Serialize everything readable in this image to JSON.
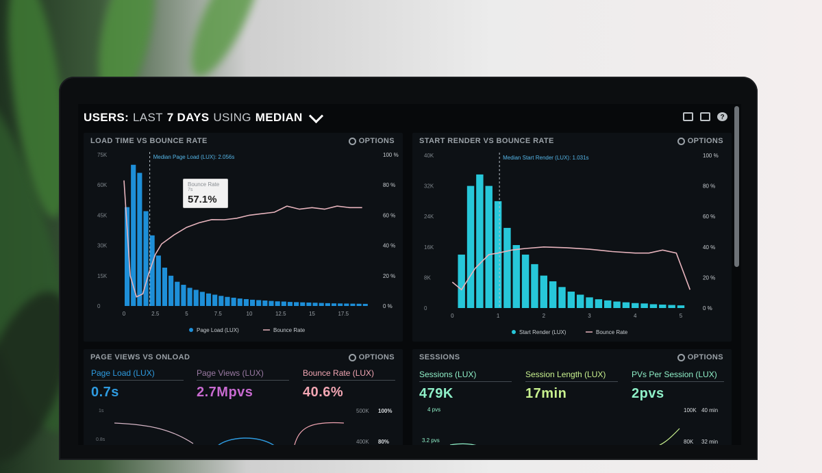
{
  "header": {
    "prefix": "USERS:",
    "middle1": "LAST",
    "days": "7 DAYS",
    "middle2": "USING",
    "stat": "MEDIAN",
    "icons": [
      "monitor-icon",
      "image-icon",
      "help-icon"
    ],
    "help_glyph": "?"
  },
  "options_label": "OPTIONS",
  "panel1": {
    "title": "LOAD TIME VS BOUNCE RATE",
    "median_label": "Median Page Load (LUX): 2.056s",
    "tooltip": {
      "title": "Bounce Rate",
      "sub": "7s",
      "value": "57.1%"
    },
    "left_ticks": [
      "75K",
      "60K",
      "45K",
      "30K",
      "15K",
      "0"
    ],
    "right_ticks": [
      "100 %",
      "80 %",
      "60 %",
      "40 %",
      "20 %",
      "0 %"
    ],
    "x_ticks": [
      "0",
      "2.5",
      "5",
      "7.5",
      "10",
      "12.5",
      "15",
      "17.5"
    ],
    "legend": {
      "bars": "Page Load (LUX)",
      "line": "Bounce Rate"
    }
  },
  "panel2": {
    "title": "START RENDER VS BOUNCE RATE",
    "median_label": "Median Start Render (LUX): 1.031s",
    "left_ticks": [
      "40K",
      "32K",
      "24K",
      "16K",
      "8K",
      "0"
    ],
    "right_ticks": [
      "100 %",
      "80 %",
      "60 %",
      "40 %",
      "20 %",
      "0 %"
    ],
    "x_ticks": [
      "0",
      "1",
      "2",
      "3",
      "4",
      "5"
    ],
    "legend": {
      "bars": "Start Render (LUX)",
      "line": "Bounce Rate"
    }
  },
  "panel3": {
    "title": "PAGE VIEWS VS ONLOAD",
    "metrics": [
      {
        "label": "Page Load (LUX)",
        "value": "0.7s",
        "color": "#2e9be0"
      },
      {
        "label": "Page Views (LUX)",
        "value": "2.7Mpvs",
        "color": "#c86ad0"
      },
      {
        "label": "Bounce Rate (LUX)",
        "value": "40.6%",
        "color": "#f2a6b3"
      }
    ],
    "axis_left": [
      "1s",
      "0.8s"
    ],
    "axis_right1": [
      "500K",
      "400K"
    ],
    "axis_right2": [
      "100%",
      "80%"
    ]
  },
  "panel4": {
    "title": "SESSIONS",
    "metrics": [
      {
        "label": "Sessions (LUX)",
        "value": "479K",
        "color": "#8ff0c8"
      },
      {
        "label": "Session Length (LUX)",
        "value": "17min",
        "color": "#c9f28f"
      },
      {
        "label": "PVs Per Session (LUX)",
        "value": "2pvs",
        "color": "#8ff0c8"
      }
    ],
    "axis_left": [
      "4 pvs",
      "3.2 pvs"
    ],
    "axis_right1": [
      "100K",
      "80K"
    ],
    "axis_right2": [
      "40 min",
      "32 min"
    ]
  },
  "colors": {
    "bar_blue": "#1e8fd8",
    "bar_cyan": "#27c7d9",
    "line_pink": "#e7b4bd",
    "accent_blue": "#2e9be0"
  },
  "chart_data": [
    {
      "type": "bar",
      "title": "LOAD TIME VS BOUNCE RATE",
      "xlabel": "",
      "ylabel": "",
      "x": [
        0.25,
        0.75,
        1.25,
        1.75,
        2.25,
        2.75,
        3.25,
        3.75,
        4.25,
        4.75,
        5.25,
        5.75,
        6.25,
        6.75,
        7.25,
        7.75,
        8.25,
        8.75,
        9.25,
        9.75,
        10.25,
        10.75,
        11.25,
        11.75,
        12.25,
        12.75,
        13.25,
        13.75,
        14.25,
        14.75,
        15.25,
        15.75,
        16.25,
        16.75,
        17.25,
        17.75,
        18.25,
        18.75,
        19.25
      ],
      "series": [
        {
          "name": "Page Load (LUX)",
          "axis": "left",
          "values": [
            49000,
            70000,
            66000,
            47000,
            35000,
            25000,
            19000,
            15000,
            12000,
            10500,
            9000,
            8000,
            7000,
            6200,
            5600,
            5000,
            4500,
            4100,
            3700,
            3400,
            3100,
            2900,
            2700,
            2500,
            2300,
            2200,
            2000,
            1900,
            1800,
            1700,
            1600,
            1500,
            1400,
            1300,
            1250,
            1200,
            1150,
            1100,
            1050
          ]
        },
        {
          "name": "Bounce Rate",
          "type": "line",
          "axis": "right",
          "x": [
            0,
            0.5,
            1,
            1.5,
            2,
            2.5,
            3,
            4,
            5,
            6,
            7,
            8,
            9,
            10,
            11,
            12,
            13,
            14,
            15,
            16,
            17,
            18,
            19
          ],
          "values": [
            83,
            20,
            6,
            8,
            22,
            34,
            41,
            47,
            52,
            55,
            57.1,
            57,
            58,
            60,
            61,
            62,
            66,
            64,
            65,
            64,
            66,
            65,
            65
          ]
        }
      ],
      "ylim": [
        0,
        75000
      ],
      "y2lim": [
        0,
        100
      ],
      "xlim": [
        -0.6,
        20
      ],
      "grid": false,
      "legend": "bottom"
    },
    {
      "type": "bar",
      "title": "START RENDER VS BOUNCE RATE",
      "xlabel": "",
      "ylabel": "",
      "x": [
        0.2,
        0.4,
        0.6,
        0.8,
        1.0,
        1.2,
        1.4,
        1.6,
        1.8,
        2.0,
        2.2,
        2.4,
        2.6,
        2.8,
        3.0,
        3.2,
        3.4,
        3.6,
        3.8,
        4.0,
        4.2,
        4.4,
        4.6,
        4.8,
        5.0
      ],
      "series": [
        {
          "name": "Start Render (LUX)",
          "axis": "left",
          "values": [
            14000,
            32000,
            35000,
            32000,
            28000,
            21000,
            16500,
            14000,
            11500,
            8500,
            7000,
            5500,
            4300,
            3500,
            2800,
            2300,
            2000,
            1700,
            1500,
            1300,
            1200,
            1000,
            900,
            800,
            700
          ]
        },
        {
          "name": "Bounce Rate",
          "type": "line",
          "axis": "right",
          "x": [
            0,
            0.2,
            0.5,
            0.8,
            1.0,
            1.3,
            1.6,
            2.0,
            2.5,
            3.0,
            3.5,
            4.0,
            4.3,
            4.6,
            4.9,
            5.2
          ],
          "values": [
            17,
            12,
            26,
            35,
            36,
            38,
            39,
            40,
            39.5,
            38.5,
            37,
            36,
            36,
            38,
            36,
            12
          ]
        }
      ],
      "ylim": [
        0,
        40000
      ],
      "y2lim": [
        0,
        100
      ],
      "xlim": [
        -0.2,
        5.3
      ],
      "grid": false,
      "legend": "bottom"
    }
  ]
}
